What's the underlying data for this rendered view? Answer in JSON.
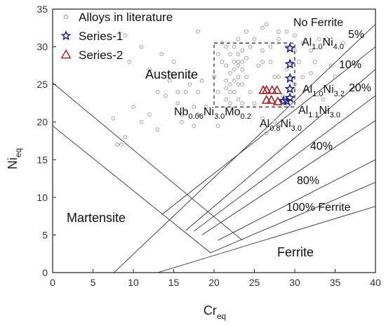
{
  "chart_data": {
    "type": "scatter",
    "xlabel": "Cr",
    "xlabel_sub": "eq",
    "ylabel": "Ni",
    "ylabel_sub": "eq",
    "xlim": [
      0,
      40
    ],
    "ylim": [
      0,
      35
    ],
    "xticks": [
      0,
      5,
      10,
      15,
      20,
      25,
      30,
      35,
      40
    ],
    "yticks": [
      0,
      5,
      10,
      15,
      20,
      25,
      30,
      35
    ],
    "legend_position": "top-left",
    "legend": [
      {
        "label": "Alloys in literature",
        "marker": "circle",
        "color": "#999999"
      },
      {
        "label": "Series-1",
        "marker": "star",
        "color": "#1a1a8c"
      },
      {
        "label": "Series-2",
        "marker": "triangle",
        "color": "#a01818"
      }
    ],
    "series": [
      {
        "name": "Alloys in literature",
        "marker": "circle",
        "color": "#999999",
        "points": [
          [
            9,
            31.5
          ],
          [
            9.5,
            28
          ],
          [
            10,
            22
          ],
          [
            11,
            20
          ],
          [
            12,
            21
          ],
          [
            12,
            27
          ],
          [
            13.5,
            29
          ],
          [
            14,
            23.5
          ],
          [
            14.5,
            25.5
          ],
          [
            14.5,
            26.5
          ],
          [
            15,
            28
          ],
          [
            15,
            26
          ],
          [
            15.5,
            24
          ],
          [
            15.5,
            22.5
          ],
          [
            16,
            21
          ],
          [
            16.5,
            24
          ],
          [
            17,
            26
          ],
          [
            17,
            25
          ],
          [
            17.5,
            22
          ],
          [
            18,
            24
          ],
          [
            18,
            21
          ],
          [
            18.5,
            25.5
          ],
          [
            20,
            26
          ],
          [
            20.5,
            24
          ],
          [
            21,
            30.5
          ],
          [
            21.5,
            30
          ],
          [
            21.5,
            27.5
          ],
          [
            21.5,
            25.5
          ],
          [
            21.5,
            24.5
          ],
          [
            21.5,
            23
          ],
          [
            22,
            26.5
          ],
          [
            22,
            25
          ],
          [
            22,
            24
          ],
          [
            22,
            22.5
          ],
          [
            22,
            29
          ],
          [
            22.5,
            30
          ],
          [
            22.5,
            28
          ],
          [
            22.5,
            27
          ],
          [
            22.5,
            25.5
          ],
          [
            22.5,
            24
          ],
          [
            23,
            31
          ],
          [
            23,
            29
          ],
          [
            23,
            28
          ],
          [
            23,
            27.5
          ],
          [
            23,
            26
          ],
          [
            23,
            25
          ],
          [
            23,
            23
          ],
          [
            23.5,
            29.5
          ],
          [
            23.5,
            28
          ],
          [
            23.5,
            27
          ],
          [
            23.5,
            25
          ],
          [
            23.5,
            22.5
          ],
          [
            24,
            26
          ],
          [
            24,
            28.5
          ],
          [
            24.5,
            24
          ],
          [
            25,
            22.5
          ],
          [
            25,
            31
          ],
          [
            25.5,
            27.5
          ],
          [
            26,
            29.5
          ],
          [
            26,
            20.5
          ],
          [
            26.5,
            18.5
          ],
          [
            26,
            28
          ],
          [
            27,
            30
          ],
          [
            27,
            28
          ],
          [
            27.5,
            26
          ],
          [
            27.5,
            20
          ],
          [
            28,
            31
          ],
          [
            28,
            26
          ],
          [
            28,
            19.5
          ],
          [
            28.5,
            23.5
          ],
          [
            29,
            32
          ],
          [
            29,
            30
          ],
          [
            29,
            27
          ],
          [
            29.5,
            28
          ],
          [
            30,
            31.5
          ],
          [
            30,
            29.5
          ],
          [
            30,
            25
          ],
          [
            30.5,
            28
          ],
          [
            31,
            26
          ],
          [
            31,
            30.5
          ],
          [
            32,
            29.5
          ],
          [
            32,
            26.5
          ],
          [
            32.5,
            28
          ],
          [
            33,
            31
          ],
          [
            33.5,
            23
          ],
          [
            34,
            31
          ],
          [
            34.5,
            27.5
          ],
          [
            35,
            26
          ],
          [
            36,
            30.5
          ],
          [
            8,
            17
          ],
          [
            8.5,
            17
          ],
          [
            7.5,
            20.5
          ],
          [
            9,
            18
          ],
          [
            13,
            24
          ],
          [
            18,
            32
          ],
          [
            24,
            32
          ],
          [
            26.5,
            33
          ],
          [
            11,
            30
          ],
          [
            20.5,
            19.5
          ],
          [
            19,
            22
          ],
          [
            16,
            20
          ],
          [
            26,
            32.5
          ],
          [
            28,
            32
          ],
          [
            24.5,
            30
          ],
          [
            21,
            28
          ],
          [
            20.5,
            29
          ],
          [
            13,
            19
          ],
          [
            17.5,
            19.5
          ]
        ]
      },
      {
        "name": "Series-1",
        "marker": "star",
        "color": "#1a1a8c",
        "points": [
          [
            29.4,
            29.8
          ],
          [
            29.4,
            27.7
          ],
          [
            29.4,
            25.8
          ],
          [
            29.4,
            24.4
          ],
          [
            29.4,
            23.2
          ],
          [
            29.0,
            22.8
          ],
          [
            28.6,
            22.8
          ]
        ]
      },
      {
        "name": "Series-2",
        "marker": "triangle",
        "color": "#a01818",
        "points": [
          [
            26.1,
            24.2
          ],
          [
            26.5,
            24.2
          ],
          [
            27.2,
            24.2
          ],
          [
            27.8,
            24.2
          ],
          [
            26.5,
            22.9
          ],
          [
            27.1,
            22.9
          ],
          [
            27.9,
            22.7
          ]
        ]
      }
    ],
    "region_labels": [
      "Austenite",
      "Martensite",
      "Ferrite",
      "No Ferrite"
    ],
    "ferrite_percent_labels": [
      "5%",
      "10%",
      "20%",
      "40%",
      "80%",
      "100% Ferrite"
    ],
    "alloy_annotations": [
      {
        "base": "Al",
        "sub1": "1.0",
        "mid": "Ni",
        "sub2": "4.0"
      },
      {
        "base": "Al",
        "sub1": "1.0",
        "mid": "Ni",
        "sub2": "3.2"
      },
      {
        "base": "Al",
        "sub1": "1.1",
        "mid": "Ni",
        "sub2": "3.0"
      },
      {
        "base": "Al",
        "sub1": "0.8",
        "mid": "Ni",
        "sub2": "3.0"
      },
      {
        "base": "Nb",
        "sub1": "0.06",
        "mid": "Ni",
        "sub2": "3.0",
        "tail": "Mo",
        "sub3": "0.2"
      }
    ],
    "region_boundaries": [
      {
        "x": [
          0,
          23.5
        ],
        "y": [
          25.2,
          4.3
        ]
      },
      {
        "x": [
          0,
          19.6
        ],
        "y": [
          19.5,
          2.6
        ]
      },
      {
        "x": [
          7.6,
          40
        ],
        "y": [
          0,
          33
        ]
      },
      {
        "x": [
          13.5,
          40
        ],
        "y": [
          7.7,
          30
        ]
      },
      {
        "x": [
          16.5,
          40
        ],
        "y": [
          5.6,
          27
        ]
      },
      {
        "x": [
          17.5,
          40
        ],
        "y": [
          5.5,
          23.5
        ]
      },
      {
        "x": [
          18.5,
          40
        ],
        "y": [
          5.0,
          20.2
        ]
      },
      {
        "x": [
          20.5,
          40
        ],
        "y": [
          4.3,
          15.0
        ]
      },
      {
        "x": [
          19.5,
          40
        ],
        "y": [
          2.6,
          12.0
        ]
      },
      {
        "x": [
          13,
          40
        ],
        "y": [
          0,
          8.8
        ]
      }
    ],
    "dashed_box": {
      "x": [
        20,
        30
      ],
      "y": [
        22,
        30.5
      ]
    }
  }
}
